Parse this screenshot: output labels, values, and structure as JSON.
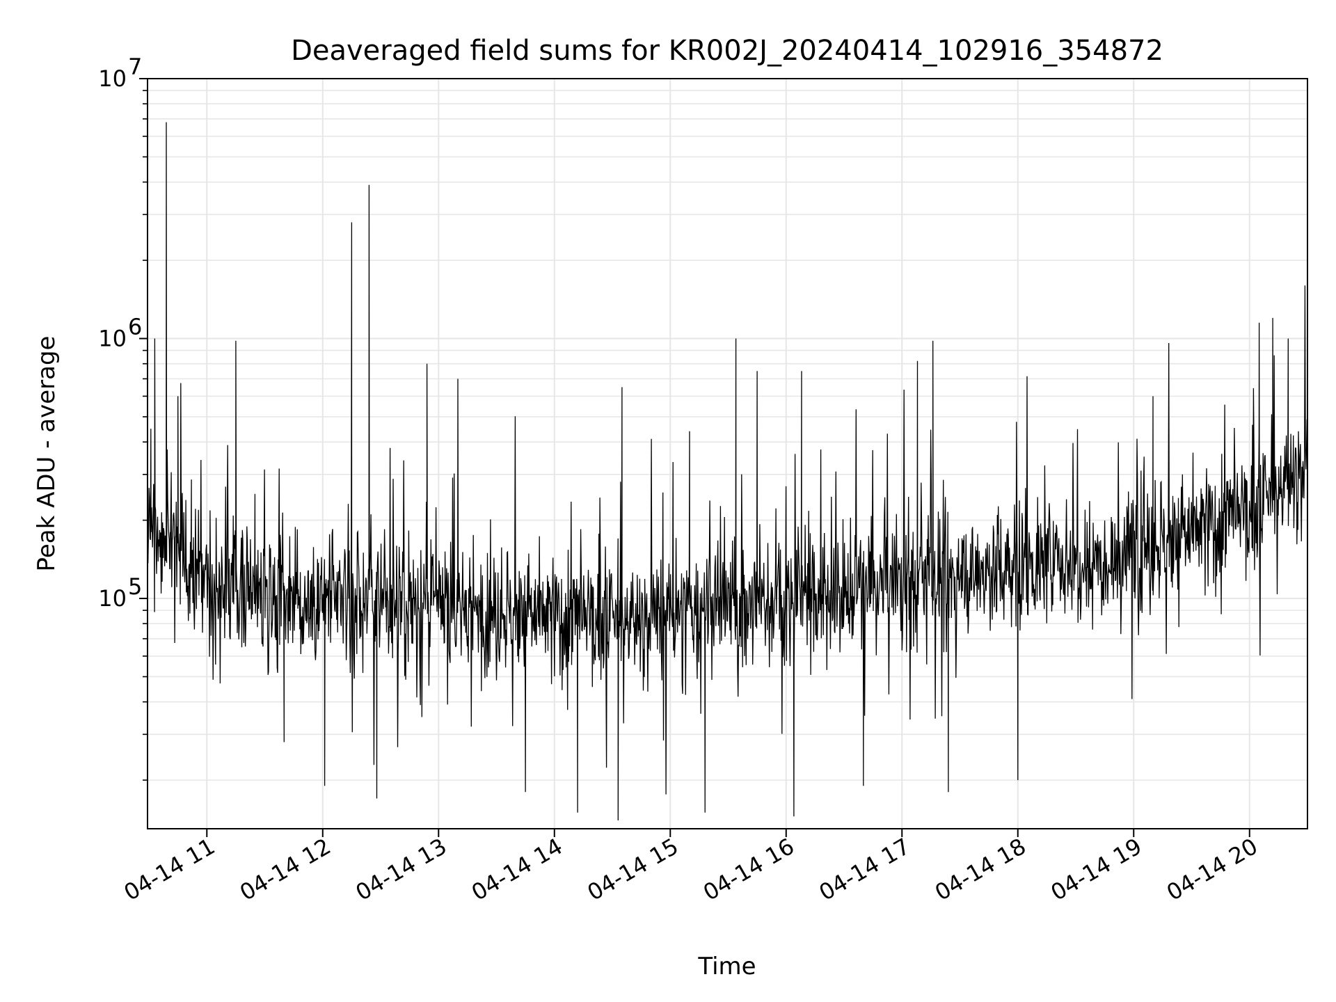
{
  "chart_data": {
    "type": "line",
    "title": "Deaveraged field sums for KR002J_20240414_102916_354872",
    "xlabel": "Time",
    "ylabel": "Peak ADU - average",
    "y_scale": "log",
    "ylim": [
      13000,
      10000000
    ],
    "xlim": [
      "2024-04-14 10:29:16",
      "2024-04-14 20:30:00"
    ],
    "x_ticks": [
      {
        "t": "2024-04-14 11:00",
        "label": "04-14 11"
      },
      {
        "t": "2024-04-14 12:00",
        "label": "04-14 12"
      },
      {
        "t": "2024-04-14 13:00",
        "label": "04-14 13"
      },
      {
        "t": "2024-04-14 14:00",
        "label": "04-14 14"
      },
      {
        "t": "2024-04-14 15:00",
        "label": "04-14 15"
      },
      {
        "t": "2024-04-14 16:00",
        "label": "04-14 16"
      },
      {
        "t": "2024-04-14 17:00",
        "label": "04-14 17"
      },
      {
        "t": "2024-04-14 18:00",
        "label": "04-14 18"
      },
      {
        "t": "2024-04-14 19:00",
        "label": "04-14 19"
      },
      {
        "t": "2024-04-14 20:00",
        "label": "04-14 20"
      }
    ],
    "y_ticks": [
      {
        "value": 100000,
        "base": "10",
        "exp": "5"
      },
      {
        "value": 1000000,
        "base": "10",
        "exp": "6"
      },
      {
        "value": 10000000,
        "base": "10",
        "exp": "7"
      }
    ],
    "grid": {
      "major": true,
      "minor": true
    },
    "line_color": "#000000",
    "grid_color": "#e6e6e6",
    "series": [
      {
        "points": [
          [
            "2024-04-14 10:29:30",
            200000
          ],
          [
            "2024-04-14 10:31",
            450000
          ],
          [
            "2024-04-14 10:33",
            1000000
          ],
          [
            "2024-04-14 10:36",
            150000
          ],
          [
            "2024-04-14 10:39",
            6800000
          ],
          [
            "2024-04-14 10:41",
            180000
          ],
          [
            "2024-04-14 10:45",
            600000
          ],
          [
            "2024-04-14 10:52",
            120000
          ],
          [
            "2024-04-14 11:15",
            980000
          ],
          [
            "2024-04-14 11:25",
            110000
          ],
          [
            "2024-04-14 11:40",
            28000
          ],
          [
            "2024-04-14 12:01",
            19000
          ],
          [
            "2024-04-14 12:15",
            2800000
          ],
          [
            "2024-04-14 12:24",
            3900000
          ],
          [
            "2024-04-14 12:28",
            17000
          ],
          [
            "2024-04-14 12:54",
            800000
          ],
          [
            "2024-04-14 13:10",
            700000
          ],
          [
            "2024-04-14 13:45",
            18000
          ],
          [
            "2024-04-14 14:12",
            15000
          ],
          [
            "2024-04-14 14:33",
            14000
          ],
          [
            "2024-04-14 14:35",
            650000
          ],
          [
            "2024-04-14 15:10",
            440000
          ],
          [
            "2024-04-14 15:18",
            15000
          ],
          [
            "2024-04-14 15:34",
            1000000
          ],
          [
            "2024-04-14 15:45",
            750000
          ],
          [
            "2024-04-14 16:04",
            14500
          ],
          [
            "2024-04-14 16:08",
            750000
          ],
          [
            "2024-04-14 16:40",
            19000
          ],
          [
            "2024-04-14 17:08",
            820000
          ],
          [
            "2024-04-14 17:16",
            980000
          ],
          [
            "2024-04-14 17:24",
            18000
          ],
          [
            "2024-04-14 18:00",
            20000
          ],
          [
            "2024-04-14 19:10",
            600000
          ],
          [
            "2024-04-14 20:05",
            1150000
          ],
          [
            "2024-04-14 20:12",
            1200000
          ],
          [
            "2024-04-14 20:20",
            1000000
          ],
          [
            "2024-04-14 20:30",
            400000
          ]
        ]
      }
    ]
  }
}
